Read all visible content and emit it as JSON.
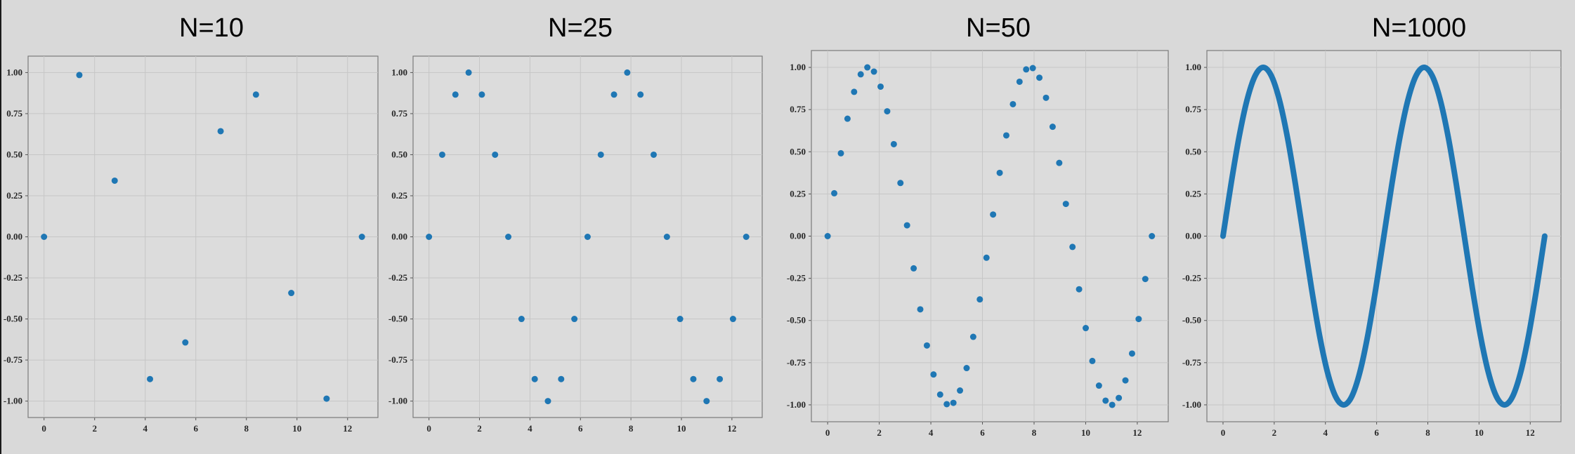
{
  "chart_data": [
    {
      "type": "scatter",
      "title": "N=10",
      "xlim": [
        -0.63,
        13.2
      ],
      "ylim": [
        -1.1,
        1.1
      ],
      "xticks": [
        0,
        2,
        4,
        6,
        8,
        10,
        12
      ],
      "yticks": [
        -1.0,
        -0.75,
        -0.5,
        -0.25,
        0.0,
        0.25,
        0.5,
        0.75,
        1.0
      ],
      "ytick_labels": [
        "-1.00",
        "-0.75",
        "-0.50",
        "-0.25",
        "0.00",
        "0.25",
        "0.50",
        "0.75",
        "1.00"
      ],
      "grid": true,
      "color": "#1f77b4",
      "series": [
        {
          "x": [
            0,
            1.396,
            2.793,
            4.189,
            5.585,
            6.981,
            8.378,
            9.774,
            11.17,
            12.566
          ],
          "y": [
            0,
            0.985,
            0.342,
            -0.866,
            -0.643,
            0.643,
            0.866,
            -0.342,
            -0.985,
            0
          ]
        }
      ]
    },
    {
      "type": "scatter",
      "title": "N=25",
      "xlim": [
        -0.63,
        13.2
      ],
      "ylim": [
        -1.1,
        1.1
      ],
      "xticks": [
        0,
        2,
        4,
        6,
        8,
        10,
        12
      ],
      "yticks": [
        -1.0,
        -0.75,
        -0.5,
        -0.25,
        0.0,
        0.25,
        0.5,
        0.75,
        1.0
      ],
      "ytick_labels": [
        "-1.00",
        "-0.75",
        "-0.50",
        "-0.25",
        "0.00",
        "0.25",
        "0.50",
        "0.75",
        "1.00"
      ],
      "grid": true,
      "color": "#1f77b4",
      "series": [
        {
          "x": [
            0,
            0.524,
            1.047,
            1.571,
            2.094,
            2.618,
            3.142,
            3.665,
            4.189,
            4.712,
            5.236,
            5.76,
            6.283,
            6.807,
            7.33,
            7.854,
            8.378,
            8.901,
            9.425,
            9.948,
            10.472,
            10.996,
            11.519,
            12.043,
            12.566
          ],
          "y": [
            0,
            0.5,
            0.866,
            1.0,
            0.866,
            0.5,
            0,
            -0.5,
            -0.866,
            -1.0,
            -0.866,
            -0.5,
            0,
            0.5,
            0.866,
            1.0,
            0.866,
            0.5,
            0,
            -0.5,
            -0.866,
            -1.0,
            -0.866,
            -0.5,
            0
          ]
        }
      ]
    },
    {
      "type": "scatter",
      "title": "N=50",
      "xlim": [
        -0.63,
        13.2
      ],
      "ylim": [
        -1.1,
        1.1
      ],
      "xticks": [
        0,
        2,
        4,
        6,
        8,
        10,
        12
      ],
      "yticks": [
        -1.0,
        -0.75,
        -0.5,
        -0.25,
        0.0,
        0.25,
        0.5,
        0.75,
        1.0
      ],
      "ytick_labels": [
        "-1.00",
        "-0.75",
        "-0.50",
        "-0.25",
        "0.00",
        "0.25",
        "0.50",
        "0.75",
        "1.00"
      ],
      "grid": true,
      "color": "#1f77b4",
      "series": [
        {
          "x": [
            0,
            0.256,
            0.513,
            0.769,
            1.026,
            1.282,
            1.539,
            1.795,
            2.052,
            2.308,
            2.565,
            2.821,
            3.077,
            3.334,
            3.59,
            3.847,
            4.103,
            4.36,
            4.616,
            4.873,
            5.129,
            5.386,
            5.642,
            5.898,
            6.155,
            6.411,
            6.668,
            6.924,
            7.181,
            7.437,
            7.694,
            7.95,
            8.206,
            8.463,
            8.719,
            8.976,
            9.232,
            9.489,
            9.745,
            10.002,
            10.258,
            10.515,
            10.771,
            11.027,
            11.284,
            11.54,
            11.797,
            12.053,
            12.31,
            12.566
          ],
          "y": [
            0,
            0.254,
            0.491,
            0.696,
            0.855,
            0.959,
            1.0,
            0.975,
            0.886,
            0.74,
            0.545,
            0.315,
            0.064,
            -0.191,
            -0.434,
            -0.648,
            -0.82,
            -0.939,
            -0.996,
            -0.988,
            -0.915,
            -0.782,
            -0.597,
            -0.375,
            -0.128,
            0.128,
            0.375,
            0.597,
            0.782,
            0.915,
            0.988,
            0.996,
            0.939,
            0.82,
            0.648,
            0.434,
            0.191,
            -0.064,
            -0.315,
            -0.545,
            -0.74,
            -0.886,
            -0.975,
            -1.0,
            -0.959,
            -0.855,
            -0.696,
            -0.491,
            -0.254,
            0
          ]
        }
      ]
    },
    {
      "type": "line",
      "title": "N=1000",
      "xlim": [
        -0.63,
        13.2
      ],
      "ylim": [
        -1.1,
        1.1
      ],
      "xticks": [
        0,
        2,
        4,
        6,
        8,
        10,
        12
      ],
      "yticks": [
        -1.0,
        -0.75,
        -0.5,
        -0.25,
        0.0,
        0.25,
        0.5,
        0.75,
        1.0
      ],
      "ytick_labels": [
        "-1.00",
        "-0.75",
        "-0.50",
        "-0.25",
        "0.00",
        "0.25",
        "0.50",
        "0.75",
        "1.00"
      ],
      "grid": true,
      "color": "#1f77b4",
      "series": [
        {
          "x": [
            0,
            0.314,
            0.628,
            0.942,
            1.257,
            1.571,
            1.885,
            2.199,
            2.513,
            2.827,
            3.142,
            3.456,
            3.77,
            4.084,
            4.398,
            4.712,
            5.027,
            5.341,
            5.655,
            5.969,
            6.283,
            6.597,
            6.912,
            7.226,
            7.54,
            7.854,
            8.168,
            8.482,
            8.796,
            9.111,
            9.425,
            9.739,
            10.053,
            10.367,
            10.681,
            10.996,
            11.31,
            11.624,
            11.938,
            12.252,
            12.566
          ],
          "y": [
            0,
            0.309,
            0.588,
            0.809,
            0.951,
            1.0,
            0.951,
            0.809,
            0.588,
            0.309,
            0,
            -0.309,
            -0.588,
            -0.809,
            -0.951,
            -1.0,
            -0.951,
            -0.809,
            -0.588,
            -0.309,
            0,
            0.309,
            0.588,
            0.809,
            0.951,
            1.0,
            0.951,
            0.809,
            0.588,
            0.309,
            0,
            -0.309,
            -0.588,
            -0.809,
            -0.951,
            -1.0,
            -0.951,
            -0.809,
            -0.588,
            -0.309,
            0
          ]
        }
      ]
    }
  ]
}
